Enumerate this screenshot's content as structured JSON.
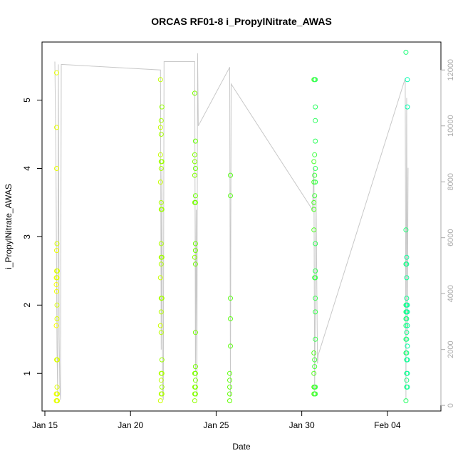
{
  "chart_data": {
    "type": "scatter",
    "title": "ORCAS RF01-8 i_PropylNitrate_AWAS",
    "xlabel": "Date",
    "ylabel": "i_PropylNitrate_AWAS",
    "xlim": [
      "2016-01-14T20:00",
      "2016-02-07T03:00"
    ],
    "ylim": [
      0.45,
      5.85
    ],
    "y2lim": [
      -200,
      13000
    ],
    "x_ticks": [
      {
        "date": "2016-01-15",
        "label": "Jan 15"
      },
      {
        "date": "2016-01-20",
        "label": "Jan 20"
      },
      {
        "date": "2016-01-25",
        "label": "Jan 25"
      },
      {
        "date": "2016-01-30",
        "label": "Jan 30"
      },
      {
        "date": "2016-02-04",
        "label": "Feb 04"
      }
    ],
    "y_ticks": [
      {
        "value": 1,
        "label": "1"
      },
      {
        "value": 2,
        "label": "2"
      },
      {
        "value": 3,
        "label": "3"
      },
      {
        "value": 4,
        "label": "4"
      },
      {
        "value": 5,
        "label": "5"
      }
    ],
    "y2_ticks": [
      {
        "value": 0,
        "label": "0"
      },
      {
        "value": 2000,
        "label": "2000"
      },
      {
        "value": 4000,
        "label": "4000"
      },
      {
        "value": 6000,
        "label": "6000"
      },
      {
        "value": 8000,
        "label": "8000"
      },
      {
        "value": 10000,
        "label": "10000"
      },
      {
        "value": 12000,
        "label": "12000"
      }
    ],
    "grid": false,
    "colors": {
      "altitude_line": "#c8c8c8",
      "marker_start": "#ffff00",
      "marker_mid": "#66ff00",
      "marker_end": "#00ffb0"
    },
    "altitude_series": {
      "name": "",
      "points": [
        [
          "2016-01-15T14:00",
          12300
        ],
        [
          "2016-01-15T15:30",
          9000
        ],
        [
          "2016-01-15T17:00",
          2000
        ],
        [
          "2016-01-15T18:00",
          300
        ],
        [
          "2016-01-15T19:00",
          12200
        ],
        [
          "2016-01-15T20:00",
          2500
        ],
        [
          "2016-01-15T21:00",
          600
        ],
        [
          "2016-01-15T22:00",
          200
        ],
        [
          "2016-01-15T23:00",
          12200
        ],
        [
          "2016-01-21T18:00",
          12000
        ],
        [
          "2016-01-21T19:00",
          2000
        ],
        [
          "2016-01-21T20:00",
          8500
        ],
        [
          "2016-01-21T21:00",
          400
        ],
        [
          "2016-01-21T22:00",
          200
        ],
        [
          "2016-01-21T23:00",
          12300
        ],
        [
          "2016-01-23T18:00",
          12300
        ],
        [
          "2016-01-23T19:00",
          1200
        ],
        [
          "2016-01-23T20:00",
          7000
        ],
        [
          "2016-01-23T21:00",
          300
        ],
        [
          "2016-01-23T22:00",
          12600
        ],
        [
          "2016-01-23T23:00",
          10000
        ],
        [
          "2016-01-25T19:00",
          12100
        ],
        [
          "2016-01-25T20:00",
          300
        ],
        [
          "2016-01-25T21:00",
          11500
        ],
        [
          "2016-01-30T15:00",
          7000
        ],
        [
          "2016-01-30T17:00",
          8500
        ],
        [
          "2016-01-30T18:00",
          500
        ],
        [
          "2016-01-30T20:00",
          7500
        ],
        [
          "2016-01-30T22:00",
          1500
        ],
        [
          "2016-01-30T23:00",
          1800
        ],
        [
          "2016-02-05T01:00",
          11700
        ],
        [
          "2016-02-05T02:00",
          200
        ],
        [
          "2016-02-05T03:00",
          11000
        ],
        [
          "2016-02-05T04:00",
          2500
        ],
        [
          "2016-02-05T05:00",
          8500
        ]
      ]
    },
    "series": [
      {
        "name": "",
        "points": [
          [
            "2016-01-15T16:00",
            0.6
          ],
          [
            "2016-01-15T16:00",
            0.7
          ],
          [
            "2016-01-15T16:00",
            1.7
          ],
          [
            "2016-01-15T16:00",
            2.3
          ],
          [
            "2016-01-15T16:00",
            2.4
          ],
          [
            "2016-01-15T16:30",
            0.6
          ],
          [
            "2016-01-15T16:30",
            0.7
          ],
          [
            "2016-01-15T16:30",
            1.2
          ],
          [
            "2016-01-15T16:30",
            2.2
          ],
          [
            "2016-01-15T16:30",
            2.5
          ],
          [
            "2016-01-15T16:30",
            2.8
          ],
          [
            "2016-01-15T16:30",
            4.0
          ],
          [
            "2016-01-15T16:30",
            4.6
          ],
          [
            "2016-01-15T16:30",
            5.4
          ],
          [
            "2016-01-15T17:00",
            0.6
          ],
          [
            "2016-01-15T17:00",
            0.8
          ],
          [
            "2016-01-15T17:00",
            1.2
          ],
          [
            "2016-01-15T17:00",
            1.8
          ],
          [
            "2016-01-15T17:00",
            2.0
          ],
          [
            "2016-01-15T17:00",
            2.4
          ],
          [
            "2016-01-15T17:00",
            2.9
          ],
          [
            "2016-01-15T17:30",
            0.6
          ],
          [
            "2016-01-15T17:30",
            0.7
          ],
          [
            "2016-01-15T17:30",
            1.2
          ],
          [
            "2016-01-15T17:30",
            2.5
          ],
          [
            "2016-01-21T18:00",
            0.6
          ],
          [
            "2016-01-21T18:00",
            1.7
          ],
          [
            "2016-01-21T18:00",
            2.4
          ],
          [
            "2016-01-21T18:00",
            3.8
          ],
          [
            "2016-01-21T18:00",
            4.2
          ],
          [
            "2016-01-21T18:00",
            4.6
          ],
          [
            "2016-01-21T18:00",
            5.3
          ],
          [
            "2016-01-21T19:00",
            0.7
          ],
          [
            "2016-01-21T19:00",
            0.9
          ],
          [
            "2016-01-21T19:00",
            1.0
          ],
          [
            "2016-01-21T19:00",
            1.6
          ],
          [
            "2016-01-21T19:00",
            1.9
          ],
          [
            "2016-01-21T19:00",
            2.1
          ],
          [
            "2016-01-21T19:00",
            2.6
          ],
          [
            "2016-01-21T19:00",
            2.7
          ],
          [
            "2016-01-21T19:00",
            2.9
          ],
          [
            "2016-01-21T19:00",
            3.4
          ],
          [
            "2016-01-21T19:00",
            3.5
          ],
          [
            "2016-01-21T19:00",
            4.0
          ],
          [
            "2016-01-21T19:00",
            4.1
          ],
          [
            "2016-01-21T19:00",
            4.5
          ],
          [
            "2016-01-21T19:00",
            4.7
          ],
          [
            "2016-01-21T20:00",
            0.7
          ],
          [
            "2016-01-21T20:00",
            0.8
          ],
          [
            "2016-01-21T20:00",
            1.0
          ],
          [
            "2016-01-21T20:00",
            1.2
          ],
          [
            "2016-01-21T20:00",
            2.1
          ],
          [
            "2016-01-21T20:00",
            2.7
          ],
          [
            "2016-01-21T20:00",
            3.4
          ],
          [
            "2016-01-21T20:00",
            4.1
          ],
          [
            "2016-01-21T20:00",
            4.9
          ],
          [
            "2016-01-23T18:00",
            0.6
          ],
          [
            "2016-01-23T18:00",
            0.7
          ],
          [
            "2016-01-23T18:00",
            0.8
          ],
          [
            "2016-01-23T18:00",
            1.0
          ],
          [
            "2016-01-23T18:00",
            2.7
          ],
          [
            "2016-01-23T18:00",
            3.5
          ],
          [
            "2016-01-23T18:00",
            3.9
          ],
          [
            "2016-01-23T18:00",
            4.1
          ],
          [
            "2016-01-23T18:00",
            4.2
          ],
          [
            "2016-01-23T18:00",
            5.1
          ],
          [
            "2016-01-23T19:00",
            0.7
          ],
          [
            "2016-01-23T19:00",
            0.8
          ],
          [
            "2016-01-23T19:00",
            0.9
          ],
          [
            "2016-01-23T19:00",
            1.0
          ],
          [
            "2016-01-23T19:00",
            1.1
          ],
          [
            "2016-01-23T19:00",
            1.6
          ],
          [
            "2016-01-23T19:00",
            2.6
          ],
          [
            "2016-01-23T19:00",
            2.8
          ],
          [
            "2016-01-23T19:00",
            2.9
          ],
          [
            "2016-01-23T19:00",
            3.5
          ],
          [
            "2016-01-23T19:00",
            3.6
          ],
          [
            "2016-01-23T19:00",
            4.0
          ],
          [
            "2016-01-23T19:00",
            4.4
          ],
          [
            "2016-01-25T19:00",
            0.6
          ],
          [
            "2016-01-25T19:00",
            0.7
          ],
          [
            "2016-01-25T19:00",
            0.8
          ],
          [
            "2016-01-25T19:00",
            0.9
          ],
          [
            "2016-01-25T19:00",
            1.0
          ],
          [
            "2016-01-25T20:00",
            1.4
          ],
          [
            "2016-01-25T20:00",
            1.8
          ],
          [
            "2016-01-25T20:00",
            2.1
          ],
          [
            "2016-01-25T20:00",
            3.6
          ],
          [
            "2016-01-25T20:00",
            3.9
          ],
          [
            "2016-01-30T17:00",
            0.7
          ],
          [
            "2016-01-30T17:00",
            0.8
          ],
          [
            "2016-01-30T17:00",
            1.0
          ],
          [
            "2016-01-30T17:00",
            1.3
          ],
          [
            "2016-01-30T17:00",
            3.1
          ],
          [
            "2016-01-30T17:00",
            3.4
          ],
          [
            "2016-01-30T17:00",
            3.5
          ],
          [
            "2016-01-30T17:00",
            3.8
          ],
          [
            "2016-01-30T17:00",
            4.1
          ],
          [
            "2016-01-30T17:00",
            5.3
          ],
          [
            "2016-01-30T18:00",
            0.7
          ],
          [
            "2016-01-30T18:00",
            0.8
          ],
          [
            "2016-01-30T18:00",
            1.1
          ],
          [
            "2016-01-30T18:00",
            1.2
          ],
          [
            "2016-01-30T18:00",
            2.4
          ],
          [
            "2016-01-30T18:00",
            3.6
          ],
          [
            "2016-01-30T18:00",
            3.9
          ],
          [
            "2016-01-30T18:00",
            4.2
          ],
          [
            "2016-01-30T18:00",
            5.3
          ],
          [
            "2016-01-30T19:00",
            0.7
          ],
          [
            "2016-01-30T19:00",
            0.8
          ],
          [
            "2016-01-30T19:00",
            1.5
          ],
          [
            "2016-01-30T19:00",
            1.9
          ],
          [
            "2016-01-30T19:00",
            2.1
          ],
          [
            "2016-01-30T19:00",
            2.4
          ],
          [
            "2016-01-30T19:00",
            2.5
          ],
          [
            "2016-01-30T19:00",
            2.9
          ],
          [
            "2016-01-30T19:00",
            3.8
          ],
          [
            "2016-01-30T19:00",
            4.0
          ],
          [
            "2016-01-30T19:00",
            4.4
          ],
          [
            "2016-01-30T19:00",
            4.7
          ],
          [
            "2016-01-30T19:00",
            4.9
          ],
          [
            "2016-01-30T19:00",
            5.3
          ],
          [
            "2016-02-05T02:00",
            0.6
          ],
          [
            "2016-02-05T02:00",
            1.3
          ],
          [
            "2016-02-05T02:00",
            1.5
          ],
          [
            "2016-02-05T02:00",
            1.7
          ],
          [
            "2016-02-05T02:00",
            1.8
          ],
          [
            "2016-02-05T02:00",
            1.9
          ],
          [
            "2016-02-05T02:00",
            2.0
          ],
          [
            "2016-02-05T02:00",
            2.6
          ],
          [
            "2016-02-05T02:00",
            3.1
          ],
          [
            "2016-02-05T02:00",
            5.7
          ],
          [
            "2016-02-05T03:00",
            0.8
          ],
          [
            "2016-02-05T03:00",
            0.9
          ],
          [
            "2016-02-05T03:00",
            1.0
          ],
          [
            "2016-02-05T03:00",
            1.2
          ],
          [
            "2016-02-05T03:00",
            1.3
          ],
          [
            "2016-02-05T03:00",
            1.5
          ],
          [
            "2016-02-05T03:00",
            1.6
          ],
          [
            "2016-02-05T03:00",
            1.8
          ],
          [
            "2016-02-05T03:00",
            1.9
          ],
          [
            "2016-02-05T03:00",
            2.0
          ],
          [
            "2016-02-05T03:00",
            2.1
          ],
          [
            "2016-02-05T03:00",
            2.4
          ],
          [
            "2016-02-05T03:00",
            2.6
          ],
          [
            "2016-02-05T03:00",
            2.7
          ],
          [
            "2016-02-05T04:00",
            0.8
          ],
          [
            "2016-02-05T04:00",
            1.0
          ],
          [
            "2016-02-05T04:00",
            1.2
          ],
          [
            "2016-02-05T04:00",
            1.4
          ],
          [
            "2016-02-05T04:00",
            1.7
          ],
          [
            "2016-02-05T04:00",
            1.9
          ],
          [
            "2016-02-05T04:00",
            2.0
          ],
          [
            "2016-02-05T04:00",
            4.9
          ],
          [
            "2016-02-05T04:00",
            5.3
          ]
        ]
      }
    ]
  }
}
